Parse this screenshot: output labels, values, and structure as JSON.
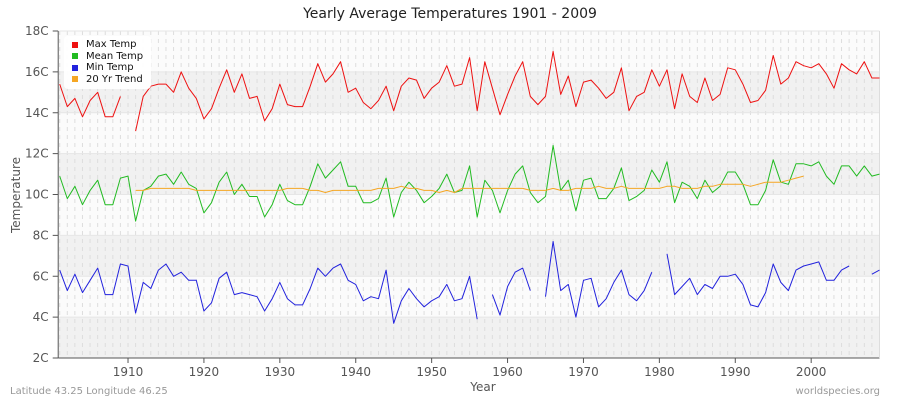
{
  "chart_data": {
    "type": "line",
    "title": "Yearly Average Temperatures 1901 - 2009",
    "xlabel": "Year",
    "ylabel": "Temperature",
    "xlim": [
      1901,
      2009
    ],
    "ylim": [
      2,
      18
    ],
    "x_ticks": [
      1910,
      1920,
      1930,
      1940,
      1950,
      1960,
      1970,
      1980,
      1990,
      2000
    ],
    "y_ticks": [
      "2C",
      "4C",
      "6C",
      "8C",
      "10C",
      "12C",
      "14C",
      "16C",
      "18C"
    ],
    "y_tick_values": [
      2,
      4,
      6,
      8,
      10,
      12,
      14,
      16,
      18
    ],
    "grid": true,
    "legend_position": "top-left",
    "x_start": 1901,
    "series": [
      {
        "name": "Max Temp",
        "color": "#ee1111",
        "values": [
          15.4,
          14.3,
          14.7,
          13.8,
          14.6,
          15.0,
          13.8,
          13.8,
          14.8,
          null,
          13.1,
          14.8,
          15.3,
          15.4,
          15.4,
          15.0,
          16.0,
          15.2,
          14.7,
          13.7,
          14.2,
          15.2,
          16.1,
          15.0,
          15.9,
          14.7,
          14.8,
          13.6,
          14.2,
          15.4,
          14.4,
          14.3,
          14.3,
          15.3,
          16.4,
          15.5,
          15.9,
          16.5,
          15.0,
          15.2,
          14.5,
          14.2,
          14.6,
          15.3,
          14.1,
          15.3,
          15.7,
          15.6,
          14.7,
          15.2,
          15.5,
          16.3,
          15.3,
          15.4,
          16.7,
          14.1,
          16.5,
          15.2,
          13.9,
          14.9,
          15.8,
          16.5,
          14.8,
          14.4,
          14.8,
          17.0,
          14.9,
          15.8,
          14.3,
          15.5,
          15.6,
          15.2,
          14.7,
          15.0,
          16.2,
          14.1,
          14.8,
          15.0,
          16.1,
          15.3,
          16.1,
          14.2,
          15.9,
          14.8,
          14.5,
          15.7,
          14.6,
          14.9,
          16.2,
          16.1,
          15.4,
          14.5,
          14.6,
          15.1,
          16.8,
          15.4,
          15.7,
          16.5,
          16.3,
          16.2,
          16.4,
          15.9,
          15.2,
          16.4,
          16.1,
          15.9,
          16.5,
          15.7,
          15.7
        ]
      },
      {
        "name": "Mean Temp",
        "color": "#22bb22",
        "values": [
          10.9,
          9.8,
          10.4,
          9.5,
          10.2,
          10.7,
          9.5,
          9.5,
          10.8,
          10.9,
          8.7,
          10.2,
          10.4,
          10.9,
          11.0,
          10.5,
          11.1,
          10.5,
          10.3,
          9.1,
          9.6,
          10.6,
          11.1,
          10.0,
          10.5,
          9.9,
          9.9,
          8.9,
          9.5,
          10.5,
          9.7,
          9.5,
          9.5,
          10.4,
          11.5,
          10.8,
          11.2,
          11.6,
          10.4,
          10.4,
          9.6,
          9.6,
          9.8,
          10.8,
          8.9,
          10.1,
          10.6,
          10.2,
          9.6,
          9.9,
          10.3,
          11.0,
          10.1,
          10.2,
          11.4,
          8.9,
          10.7,
          10.2,
          9.1,
          10.2,
          11.0,
          11.4,
          10.1,
          9.6,
          9.9,
          12.4,
          10.2,
          10.7,
          9.2,
          10.7,
          10.8,
          9.8,
          9.8,
          10.3,
          11.3,
          9.7,
          9.9,
          10.2,
          11.2,
          10.6,
          11.6,
          9.6,
          10.6,
          10.4,
          9.8,
          10.7,
          10.1,
          10.4,
          11.1,
          11.1,
          10.5,
          9.5,
          9.5,
          10.2,
          11.7,
          10.6,
          10.5,
          11.5,
          11.5,
          11.4,
          11.6,
          10.9,
          10.5,
          11.4,
          11.4,
          10.9,
          11.4,
          10.9,
          11.0
        ]
      },
      {
        "name": "Min Temp",
        "color": "#2222dd",
        "values": [
          6.3,
          5.3,
          6.1,
          5.2,
          5.8,
          6.4,
          5.1,
          5.1,
          6.6,
          6.5,
          4.2,
          5.7,
          5.4,
          6.3,
          6.6,
          6.0,
          6.2,
          5.8,
          5.8,
          4.3,
          4.7,
          5.9,
          6.2,
          5.1,
          5.2,
          5.1,
          5.0,
          4.3,
          4.9,
          5.7,
          4.9,
          4.6,
          4.6,
          5.4,
          6.4,
          6.0,
          6.4,
          6.6,
          5.8,
          5.6,
          4.8,
          5.0,
          4.9,
          6.3,
          3.7,
          4.8,
          5.4,
          4.9,
          4.5,
          4.8,
          5.0,
          5.6,
          4.8,
          4.9,
          6.0,
          3.9,
          null,
          5.1,
          4.1,
          5.5,
          6.2,
          6.4,
          5.3,
          null,
          5.0,
          7.7,
          5.3,
          5.6,
          4.0,
          5.8,
          5.9,
          4.5,
          4.9,
          5.7,
          6.3,
          5.1,
          4.8,
          5.3,
          6.2,
          null,
          7.1,
          5.1,
          5.5,
          5.9,
          5.1,
          5.6,
          5.4,
          6.0,
          6.0,
          6.1,
          5.6,
          4.6,
          4.5,
          5.2,
          6.6,
          5.7,
          5.3,
          6.3,
          6.5,
          6.6,
          6.7,
          5.8,
          5.8,
          6.3,
          6.5,
          null,
          null,
          6.1,
          6.3
        ]
      },
      {
        "name": "20 Yr Trend",
        "color": "#f5a623",
        "values": [
          null,
          null,
          null,
          null,
          null,
          null,
          null,
          null,
          null,
          null,
          10.2,
          10.2,
          10.3,
          10.3,
          10.3,
          10.3,
          10.3,
          10.3,
          10.2,
          10.2,
          10.2,
          10.2,
          10.2,
          10.2,
          10.2,
          10.2,
          10.2,
          10.2,
          10.2,
          10.2,
          10.3,
          10.3,
          10.3,
          10.2,
          10.2,
          10.1,
          10.2,
          10.2,
          10.2,
          10.2,
          10.2,
          10.2,
          10.3,
          10.3,
          10.3,
          10.4,
          10.3,
          10.3,
          10.2,
          10.2,
          10.1,
          10.2,
          10.1,
          10.3,
          10.3,
          10.3,
          10.3,
          10.3,
          10.3,
          10.3,
          10.3,
          10.3,
          10.2,
          10.2,
          10.2,
          10.3,
          10.2,
          10.2,
          10.3,
          10.3,
          10.3,
          10.4,
          10.3,
          10.3,
          10.4,
          10.3,
          10.3,
          10.3,
          10.3,
          10.3,
          10.4,
          10.4,
          10.3,
          10.3,
          10.3,
          10.4,
          10.4,
          10.5,
          10.5,
          10.5,
          10.5,
          10.4,
          10.5,
          10.6,
          10.6,
          10.6,
          10.7,
          10.8,
          10.9,
          null,
          null,
          null,
          null,
          null,
          null,
          null,
          null,
          null,
          null
        ]
      }
    ]
  },
  "title": "Yearly Average Temperatures 1901 - 2009",
  "legend": {
    "items": [
      {
        "label": "Max Temp",
        "color": "#ee1111"
      },
      {
        "label": "Mean Temp",
        "color": "#22bb22"
      },
      {
        "label": "Min Temp",
        "color": "#2222dd"
      },
      {
        "label": "20 Yr Trend",
        "color": "#f5a623"
      }
    ]
  },
  "footer": {
    "left": "Latitude 43.25 Longitude 46.25",
    "right": "worldspecies.org"
  }
}
